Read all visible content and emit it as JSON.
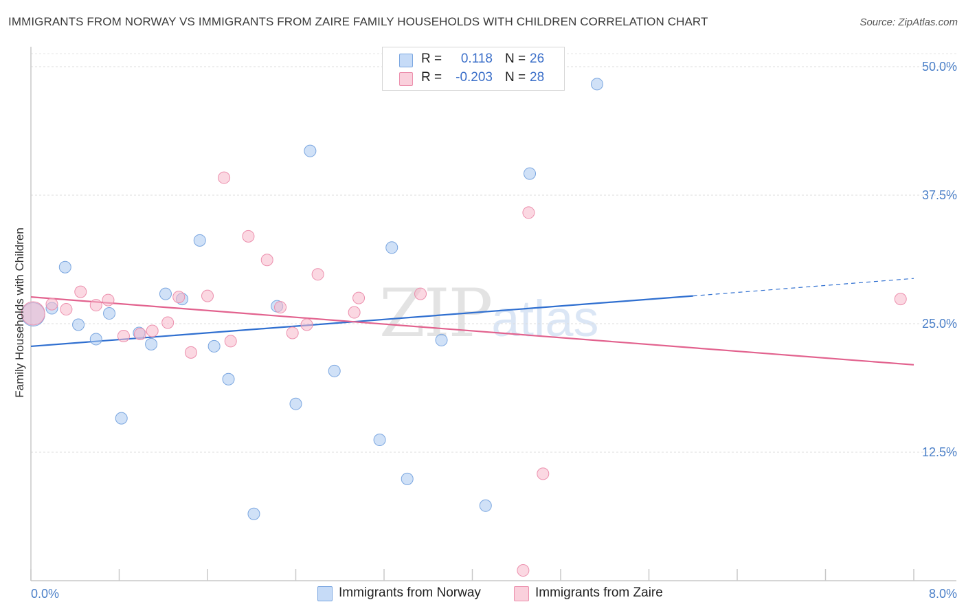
{
  "header": {
    "title": "IMMIGRANTS FROM NORWAY VS IMMIGRANTS FROM ZAIRE FAMILY HOUSEHOLDS WITH CHILDREN CORRELATION CHART",
    "source": "Source: ZipAtlas.com"
  },
  "watermark": {
    "zip": "ZIP",
    "atlas": "atlas"
  },
  "legend": {
    "norway": {
      "r_label": "R =",
      "r_value": "0.118",
      "n_label": "N =",
      "n_value": "26",
      "color": "#a9c8f0"
    },
    "zaire": {
      "r_label": "R =",
      "r_value": "-0.203",
      "n_label": "N =",
      "n_value": "28",
      "color": "#f7b8ca"
    }
  },
  "bottom_legend": {
    "norway": "Immigrants from Norway",
    "zaire": "Immigrants from Zaire"
  },
  "chart_data": {
    "type": "scatter",
    "title": "IMMIGRANTS FROM NORWAY VS IMMIGRANTS FROM ZAIRE FAMILY HOUSEHOLDS WITH CHILDREN CORRELATION CHART",
    "xlabel": "",
    "ylabel": "Family Households with Children",
    "xlim": [
      0,
      8.0
    ],
    "ylim": [
      0,
      50.0
    ],
    "x_ticks": [
      "0.0%",
      "8.0%"
    ],
    "y_ticks": [
      {
        "value": 12.5,
        "label": "12.5%"
      },
      {
        "value": 25.0,
        "label": "25.0%"
      },
      {
        "value": 37.5,
        "label": "37.5%"
      },
      {
        "value": 50.0,
        "label": "50.0%"
      }
    ],
    "grid": true,
    "legend_position": "top-center",
    "series": [
      {
        "name": "Immigrants from Norway",
        "color": "#a9c8f0",
        "stroke": "#7aa6e0",
        "trend_color": "#2f6fd0",
        "points": [
          [
            0.02,
            25.9
          ],
          [
            0.19,
            26.5
          ],
          [
            0.31,
            30.5
          ],
          [
            0.43,
            24.9
          ],
          [
            0.59,
            23.5
          ],
          [
            0.71,
            26.0
          ],
          [
            0.82,
            15.8
          ],
          [
            0.98,
            24.1
          ],
          [
            1.09,
            23.0
          ],
          [
            1.22,
            27.9
          ],
          [
            1.37,
            27.4
          ],
          [
            1.53,
            33.1
          ],
          [
            1.66,
            22.8
          ],
          [
            1.79,
            19.6
          ],
          [
            2.02,
            6.5
          ],
          [
            2.23,
            26.7
          ],
          [
            2.4,
            17.2
          ],
          [
            2.53,
            41.8
          ],
          [
            2.75,
            20.4
          ],
          [
            3.16,
            13.7
          ],
          [
            3.27,
            32.4
          ],
          [
            3.41,
            9.9
          ],
          [
            3.72,
            23.4
          ],
          [
            4.12,
            7.3
          ],
          [
            4.52,
            39.6
          ],
          [
            5.13,
            48.3
          ]
        ],
        "trend": {
          "x": [
            0,
            6.0
          ],
          "y": [
            22.8,
            27.7
          ]
        },
        "trend_dashed": {
          "x": [
            6.0,
            8.0
          ],
          "y": [
            27.7,
            29.4
          ]
        }
      },
      {
        "name": "Immigrants from Zaire",
        "color": "#f7b8ca",
        "stroke": "#ec8fad",
        "trend_color": "#e2628e",
        "points": [
          [
            0.02,
            26.0
          ],
          [
            0.19,
            26.9
          ],
          [
            0.32,
            26.4
          ],
          [
            0.45,
            28.1
          ],
          [
            0.59,
            26.8
          ],
          [
            0.7,
            27.3
          ],
          [
            0.84,
            23.8
          ],
          [
            0.99,
            24.0
          ],
          [
            1.1,
            24.3
          ],
          [
            1.24,
            25.1
          ],
          [
            1.34,
            27.6
          ],
          [
            1.45,
            22.2
          ],
          [
            1.6,
            27.7
          ],
          [
            1.75,
            39.2
          ],
          [
            1.81,
            23.3
          ],
          [
            1.97,
            33.5
          ],
          [
            2.14,
            31.2
          ],
          [
            2.26,
            26.6
          ],
          [
            2.37,
            24.1
          ],
          [
            2.5,
            24.9
          ],
          [
            2.6,
            29.8
          ],
          [
            2.93,
            26.1
          ],
          [
            2.97,
            27.5
          ],
          [
            3.53,
            27.9
          ],
          [
            4.51,
            35.8
          ],
          [
            4.64,
            10.4
          ],
          [
            4.46,
            1.0
          ],
          [
            7.88,
            27.4
          ]
        ],
        "trend": {
          "x": [
            0,
            8.0
          ],
          "y": [
            27.6,
            21.0
          ]
        }
      }
    ]
  }
}
